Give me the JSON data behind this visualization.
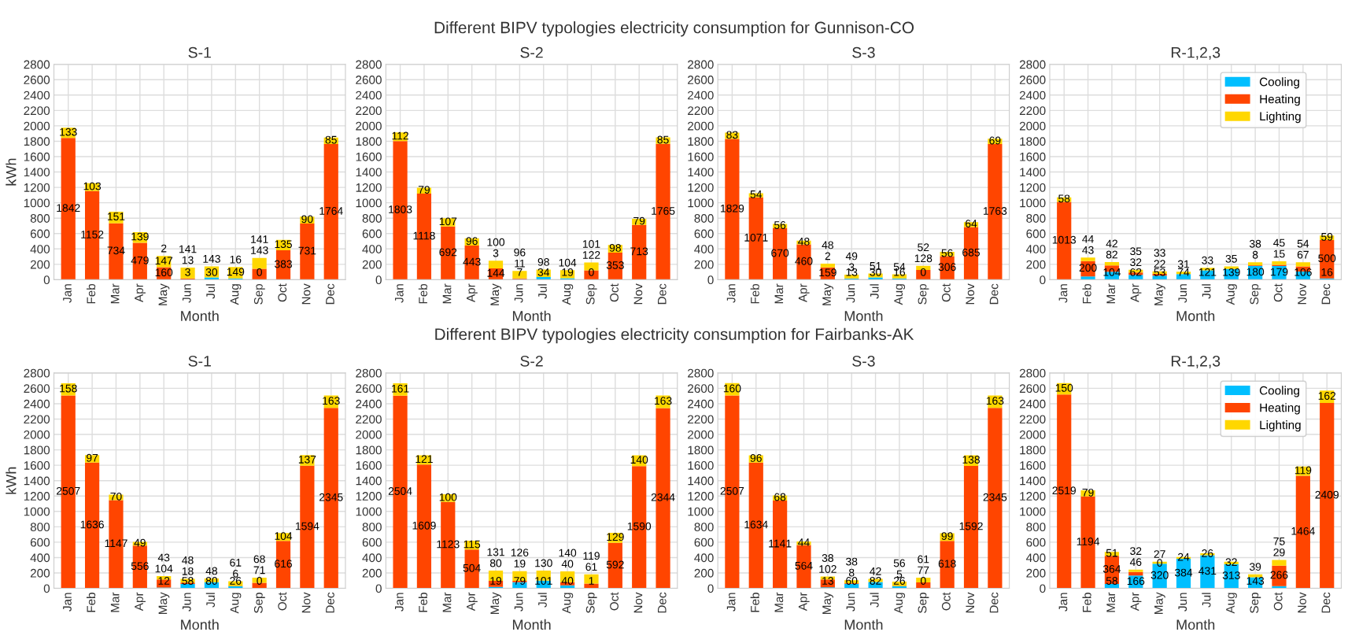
{
  "chart_data": [
    {
      "type": "other",
      "title": "Different BIPV typologies electricity consumption for Gunnison-CO"
    },
    {
      "type": "bar",
      "stacked": true,
      "title": "S-1",
      "xlabel": "Month",
      "ylabel": "kWh",
      "categories": [
        "Jan",
        "Feb",
        "Mar",
        "Apr",
        "May",
        "Jun",
        "Jul",
        "Aug",
        "Sep",
        "Oct",
        "Nov",
        "Dec"
      ],
      "ylim": [
        0,
        2800
      ],
      "yticks": [
        0,
        200,
        400,
        600,
        800,
        1000,
        1200,
        1400,
        1600,
        1800,
        2000,
        2200,
        2400,
        2600,
        2800
      ],
      "grid": true,
      "legend": false,
      "series": [
        {
          "color": "#00bfff",
          "values": [
            0,
            0,
            0,
            0,
            2,
            3,
            30,
            16,
            0,
            0,
            0,
            0
          ],
          "value_labels": [
            null,
            null,
            null,
            null,
            "2",
            "3",
            "30",
            "16",
            "0",
            null,
            null,
            null
          ]
        },
        {
          "color": "#ff4500",
          "values": [
            1842,
            1152,
            734,
            479,
            160,
            13,
            0,
            0,
            143,
            383,
            731,
            1764
          ],
          "value_labels": [
            "1842",
            "1152",
            "734",
            "479",
            "160",
            "13",
            null,
            null,
            "143",
            "383",
            "731",
            "1764"
          ]
        },
        {
          "color": "#ffd700",
          "values": [
            133,
            103,
            151,
            139,
            147,
            141,
            143,
            149,
            141,
            135,
            90,
            85
          ],
          "value_labels": [
            "133",
            "103",
            "151",
            "139",
            "147",
            "141",
            "143",
            "149",
            "141",
            "135",
            "90",
            "85"
          ]
        }
      ]
    },
    {
      "type": "bar",
      "stacked": true,
      "title": "S-2",
      "xlabel": "Month",
      "categories": [
        "Jan",
        "Feb",
        "Mar",
        "Apr",
        "May",
        "Jun",
        "Jul",
        "Aug",
        "Sep",
        "Oct",
        "Nov",
        "Dec"
      ],
      "ylim": [
        0,
        2800
      ],
      "yticks": [
        0,
        200,
        400,
        600,
        800,
        1000,
        1200,
        1400,
        1600,
        1800,
        2000,
        2200,
        2400,
        2600,
        2800
      ],
      "grid": true,
      "legend": false,
      "series": [
        {
          "color": "#00bfff",
          "values": [
            0,
            0,
            0,
            0,
            3,
            7,
            34,
            19,
            0,
            0,
            0,
            0
          ],
          "value_labels": [
            null,
            null,
            null,
            null,
            "3",
            "7",
            "34",
            "19",
            "0",
            null,
            null,
            null
          ]
        },
        {
          "color": "#ff4500",
          "values": [
            1803,
            1118,
            692,
            443,
            144,
            11,
            0,
            0,
            122,
            353,
            713,
            1765
          ],
          "value_labels": [
            "1803",
            "1118",
            "692",
            "443",
            "144",
            "11",
            null,
            null,
            "122",
            "353",
            "713",
            "1765"
          ]
        },
        {
          "color": "#ffd700",
          "values": [
            112,
            79,
            107,
            96,
            100,
            96,
            98,
            104,
            101,
            98,
            79,
            85
          ],
          "value_labels": [
            "112",
            "79",
            "107",
            "96",
            "100",
            "96",
            "98",
            "104",
            "101",
            "98",
            "79",
            "85"
          ]
        }
      ]
    },
    {
      "type": "bar",
      "stacked": true,
      "title": "S-3",
      "xlabel": "Month",
      "categories": [
        "Jan",
        "Feb",
        "Mar",
        "Apr",
        "May",
        "Jun",
        "Jul",
        "Aug",
        "Sep",
        "Oct",
        "Nov",
        "Dec"
      ],
      "ylim": [
        0,
        2800
      ],
      "yticks": [
        0,
        200,
        400,
        600,
        800,
        1000,
        1200,
        1400,
        1600,
        1800,
        2000,
        2200,
        2400,
        2600,
        2800
      ],
      "grid": true,
      "legend": false,
      "series": [
        {
          "color": "#00bfff",
          "values": [
            0,
            0,
            0,
            0,
            2,
            13,
            30,
            16,
            0,
            0,
            0,
            0
          ],
          "value_labels": [
            null,
            null,
            null,
            null,
            "2",
            "13",
            "30",
            "16",
            "0",
            null,
            null,
            null
          ]
        },
        {
          "color": "#ff4500",
          "values": [
            1829,
            1071,
            670,
            460,
            159,
            3,
            0,
            0,
            128,
            306,
            685,
            1763
          ],
          "value_labels": [
            "1829",
            "1071",
            "670",
            "460",
            "159",
            "3",
            null,
            null,
            "128",
            "306",
            "685",
            "1763"
          ]
        },
        {
          "color": "#ffd700",
          "values": [
            83,
            54,
            56,
            48,
            48,
            49,
            51,
            54,
            52,
            56,
            64,
            69
          ],
          "value_labels": [
            "83",
            "54",
            "56",
            "48",
            "48",
            "49",
            "51",
            "54",
            "52",
            "56",
            "64",
            "69"
          ]
        }
      ]
    },
    {
      "type": "bar",
      "stacked": true,
      "title": "R-1,2,3",
      "xlabel": "Month",
      "categories": [
        "Jan",
        "Feb",
        "Mar",
        "Apr",
        "May",
        "Jun",
        "Jul",
        "Aug",
        "Sep",
        "Oct",
        "Nov",
        "Dec"
      ],
      "ylim": [
        0,
        2800
      ],
      "yticks": [
        0,
        200,
        400,
        600,
        800,
        1000,
        1200,
        1400,
        1600,
        1800,
        2000,
        2200,
        2400,
        2600,
        2800
      ],
      "grid": true,
      "legend": "top right",
      "series": [
        {
          "name": "Cooling",
          "color": "#00bfff",
          "values": [
            0,
            43,
            104,
            62,
            53,
            74,
            121,
            139,
            180,
            179,
            106,
            16
          ],
          "value_labels": [
            null,
            "43",
            "104",
            "62",
            "53",
            "74",
            "121",
            "139",
            "180",
            "179",
            "106",
            "16"
          ]
        },
        {
          "name": "Heating",
          "color": "#ff4500",
          "values": [
            1013,
            200,
            82,
            32,
            22,
            0,
            0,
            0,
            8,
            15,
            67,
            500
          ],
          "value_labels": [
            "1013",
            "200",
            "82",
            "32",
            "22",
            null,
            null,
            null,
            "8",
            "15",
            "67",
            "500"
          ]
        },
        {
          "name": "Lighting",
          "color": "#ffd700",
          "values": [
            58,
            44,
            42,
            35,
            33,
            31,
            33,
            35,
            38,
            45,
            54,
            59
          ],
          "value_labels": [
            "58",
            "44",
            "42",
            "35",
            "33",
            "31",
            "33",
            "35",
            "38",
            "45",
            "54",
            "59"
          ]
        }
      ]
    },
    {
      "type": "other",
      "title": "Different BIPV typologies electricity consumption for Fairbanks-AK"
    },
    {
      "type": "bar",
      "stacked": true,
      "title": "S-1",
      "xlabel": "Month",
      "ylabel": "kWh",
      "categories": [
        "Jan",
        "Feb",
        "Mar",
        "Apr",
        "May",
        "Jun",
        "Jul",
        "Aug",
        "Sep",
        "Oct",
        "Nov",
        "Dec"
      ],
      "ylim": [
        0,
        2800
      ],
      "yticks": [
        0,
        200,
        400,
        600,
        800,
        1000,
        1200,
        1400,
        1600,
        1800,
        2000,
        2200,
        2400,
        2600,
        2800
      ],
      "grid": true,
      "legend": false,
      "series": [
        {
          "color": "#00bfff",
          "values": [
            0,
            0,
            0,
            0,
            12,
            58,
            80,
            26,
            0,
            0,
            0,
            0
          ],
          "value_labels": [
            null,
            null,
            null,
            null,
            "12",
            "58",
            "80",
            "26",
            "0",
            null,
            null,
            null
          ]
        },
        {
          "color": "#ff4500",
          "values": [
            2507,
            1636,
            1147,
            556,
            104,
            18,
            0,
            6,
            71,
            616,
            1594,
            2345
          ],
          "value_labels": [
            "2507",
            "1636",
            "1147",
            "556",
            "104",
            "18",
            null,
            "6",
            "71",
            "616",
            "1594",
            "2345"
          ]
        },
        {
          "color": "#ffd700",
          "values": [
            158,
            97,
            70,
            49,
            43,
            48,
            48,
            61,
            68,
            104,
            137,
            163
          ],
          "value_labels": [
            "158",
            "97",
            "70",
            "49",
            "43",
            "48",
            "48",
            "61",
            "68",
            "104",
            "137",
            "163"
          ]
        }
      ]
    },
    {
      "type": "bar",
      "stacked": true,
      "title": "S-2",
      "xlabel": "Month",
      "categories": [
        "Jan",
        "Feb",
        "Mar",
        "Apr",
        "May",
        "Jun",
        "Jul",
        "Aug",
        "Sep",
        "Oct",
        "Nov",
        "Dec"
      ],
      "ylim": [
        0,
        2800
      ],
      "yticks": [
        0,
        200,
        400,
        600,
        800,
        1000,
        1200,
        1400,
        1600,
        1800,
        2000,
        2200,
        2400,
        2600,
        2800
      ],
      "grid": true,
      "legend": false,
      "series": [
        {
          "color": "#00bfff",
          "values": [
            0,
            0,
            0,
            0,
            19,
            79,
            101,
            40,
            1,
            0,
            0,
            0
          ],
          "value_labels": [
            null,
            null,
            null,
            null,
            "19",
            "79",
            "101",
            "40",
            "1",
            null,
            null,
            null
          ]
        },
        {
          "color": "#ff4500",
          "values": [
            2504,
            1609,
            1123,
            504,
            80,
            19,
            0,
            40,
            61,
            592,
            1590,
            2344
          ],
          "value_labels": [
            "2504",
            "1609",
            "1123",
            "504",
            "80",
            "19",
            null,
            "40",
            "61",
            "592",
            "1590",
            "2344"
          ]
        },
        {
          "color": "#ffd700",
          "values": [
            161,
            121,
            100,
            115,
            131,
            126,
            130,
            140,
            119,
            129,
            140,
            163
          ],
          "value_labels": [
            "161",
            "121",
            "100",
            "115",
            "131",
            "126",
            "130",
            "140",
            "119",
            "129",
            "140",
            "163"
          ]
        }
      ]
    },
    {
      "type": "bar",
      "stacked": true,
      "title": "S-3",
      "xlabel": "Month",
      "categories": [
        "Jan",
        "Feb",
        "Mar",
        "Apr",
        "May",
        "Jun",
        "Jul",
        "Aug",
        "Sep",
        "Oct",
        "Nov",
        "Dec"
      ],
      "ylim": [
        0,
        2800
      ],
      "yticks": [
        0,
        200,
        400,
        600,
        800,
        1000,
        1200,
        1400,
        1600,
        1800,
        2000,
        2200,
        2400,
        2600,
        2800
      ],
      "grid": true,
      "legend": false,
      "series": [
        {
          "color": "#00bfff",
          "values": [
            0,
            0,
            0,
            0,
            13,
            60,
            82,
            26,
            0,
            0,
            0,
            0
          ],
          "value_labels": [
            null,
            null,
            null,
            null,
            "13",
            "60",
            "82",
            "26",
            "0",
            null,
            null,
            null
          ]
        },
        {
          "color": "#ff4500",
          "values": [
            2507,
            1634,
            1141,
            564,
            102,
            8,
            0,
            5,
            77,
            618,
            1592,
            2345
          ],
          "value_labels": [
            "2507",
            "1634",
            "1141",
            "564",
            "102",
            "8",
            null,
            "5",
            "77",
            "618",
            "1592",
            "2345"
          ]
        },
        {
          "color": "#ffd700",
          "values": [
            160,
            96,
            68,
            44,
            38,
            38,
            42,
            56,
            61,
            99,
            138,
            163
          ],
          "value_labels": [
            "160",
            "96",
            "68",
            "44",
            "38",
            "38",
            "42",
            "56",
            "61",
            "99",
            "138",
            "163"
          ]
        }
      ]
    },
    {
      "type": "bar",
      "stacked": true,
      "title": "R-1,2,3",
      "xlabel": "Month",
      "categories": [
        "Jan",
        "Feb",
        "Mar",
        "Apr",
        "May",
        "Jun",
        "Jul",
        "Aug",
        "Sep",
        "Oct",
        "Nov",
        "Dec"
      ],
      "ylim": [
        0,
        2800
      ],
      "yticks": [
        0,
        200,
        400,
        600,
        800,
        1000,
        1200,
        1400,
        1600,
        1800,
        2000,
        2200,
        2400,
        2600,
        2800
      ],
      "grid": true,
      "legend": "top right",
      "series": [
        {
          "name": "Cooling",
          "color": "#00bfff",
          "values": [
            0,
            0,
            58,
            166,
            320,
            384,
            431,
            313,
            143,
            29,
            0,
            0
          ],
          "value_labels": [
            null,
            null,
            "58",
            "166",
            "320",
            "384",
            "431",
            "313",
            "143",
            "29",
            null,
            null
          ]
        },
        {
          "name": "Heating",
          "color": "#ff4500",
          "values": [
            2519,
            1194,
            364,
            46,
            0,
            0,
            0,
            0,
            0,
            266,
            1464,
            2409
          ],
          "value_labels": [
            "2519",
            "1194",
            "364",
            "46",
            "0",
            null,
            null,
            null,
            null,
            "266",
            "1464",
            "2409"
          ]
        },
        {
          "name": "Lighting",
          "color": "#ffd700",
          "values": [
            150,
            79,
            51,
            32,
            27,
            24,
            26,
            32,
            39,
            75,
            119,
            162
          ],
          "value_labels": [
            "150",
            "79",
            "51",
            "32",
            "27",
            "24",
            "26",
            "32",
            "39",
            "75",
            "119",
            "162"
          ]
        }
      ]
    }
  ]
}
